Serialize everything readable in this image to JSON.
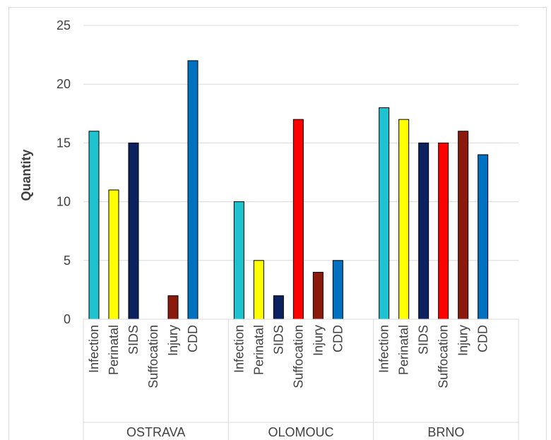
{
  "chart_data": {
    "type": "bar",
    "title": "",
    "xlabel": "",
    "ylabel": "Quantity",
    "ylim": [
      0,
      25
    ],
    "yticks": [
      0,
      5,
      10,
      15,
      20,
      25
    ],
    "grid": true,
    "legend": "none",
    "categories": [
      "Infection",
      "Perinatal",
      "SIDS",
      "Suffocation",
      "Injury",
      "CDD"
    ],
    "colors": [
      "#1ec3cf",
      "#ffff00",
      "#0b2160",
      "#ff0000",
      "#8b1a0c",
      "#0070c0"
    ],
    "groups": [
      {
        "name": "OSTRAVA",
        "values": [
          16,
          11,
          15,
          0,
          2,
          22
        ]
      },
      {
        "name": "OLOMOUC",
        "values": [
          10,
          5,
          2,
          17,
          4,
          5
        ]
      },
      {
        "name": "BRNO",
        "values": [
          18,
          17,
          15,
          15,
          16,
          14
        ]
      }
    ]
  }
}
